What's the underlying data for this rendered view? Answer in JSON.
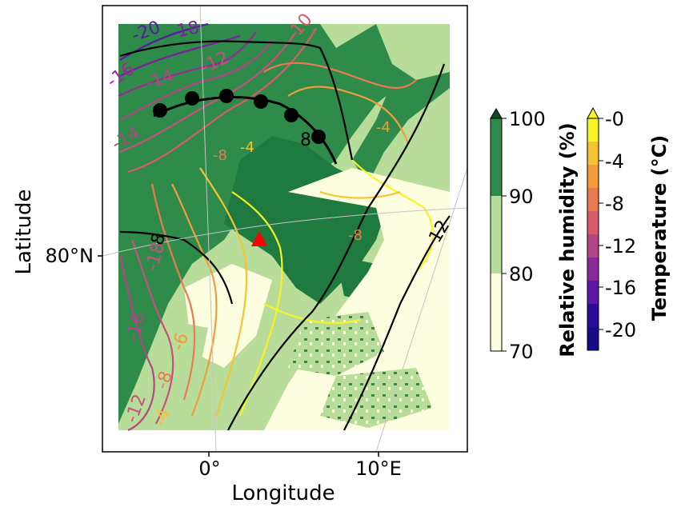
{
  "map": {
    "axis_labels": {
      "x": "Longitude",
      "y": "Latitude"
    },
    "lon_ticks": [
      "0°",
      "10°E"
    ],
    "lat_ticks": [
      "80°N"
    ],
    "marker": {
      "symbol": "red-triangle",
      "color": "#ff0000"
    },
    "front": {
      "type": "cold-front",
      "markers": 6,
      "color": "#000000"
    },
    "isobar_labels": [
      "8",
      "8",
      "12"
    ],
    "temperature_contour_labels": [
      "-20",
      "-18",
      "-16",
      "-14",
      "-12",
      "-10",
      "-8",
      "-4",
      "-16",
      "-18",
      "-14",
      "-8",
      "-6",
      "-4",
      "-12",
      "-8",
      "-4"
    ]
  },
  "colorbars": {
    "humidity": {
      "title": "Relative humidity (%)",
      "ticks": [
        "100",
        "90",
        "80",
        "70"
      ],
      "colors": [
        "#1a6b3a",
        "#2e8b4a",
        "#b8dd9a",
        "#fdfde0"
      ]
    },
    "temperature": {
      "title": "Temperature (°C)",
      "ticks": [
        "-0",
        "-4",
        "-8",
        "-12",
        "-16",
        "-20"
      ],
      "colors": [
        "#f7f324",
        "#f8c230",
        "#f29c3d",
        "#ec7a51",
        "#d95a6a",
        "#b44586",
        "#8a2a9a",
        "#5c16a8",
        "#2b0b9c",
        "#180b88"
      ]
    }
  }
}
